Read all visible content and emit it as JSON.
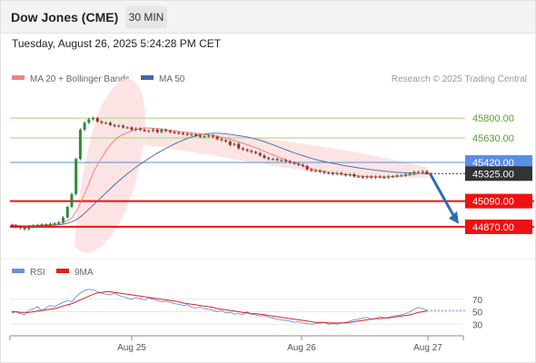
{
  "header": {
    "title": "Dow Jones (CME)",
    "timeframe": "30 MIN"
  },
  "datetime": "Tuesday, August 26, 2025 5:24:28 PM CET",
  "legend": {
    "ma20_label": "MA 20 + Bollinger Bands",
    "ma50_label": "MA 50",
    "source": "Research © 2025 Trading Central",
    "rsi_label": "RSI",
    "ma9_label": "9MA"
  },
  "colors": {
    "ma20": "#f08080",
    "ma50": "#3e6aa8",
    "bollinger_fill": "#fde1e1",
    "resistance": "#a5d66e",
    "support": "#ee1111",
    "pivot": "#5a8de6",
    "current": "#333333",
    "rsi": "#6b8fe0",
    "rsi_ma": "#e02020",
    "arrow": "#2f6cb5"
  },
  "chart_data": [
    {
      "type": "candlestick",
      "x_ticks": [
        "Aug 25",
        "Aug 26",
        "Aug 27"
      ],
      "levels": [
        {
          "value": 45800.0,
          "label": "45800.00",
          "kind": "resistance"
        },
        {
          "value": 45630.0,
          "label": "45630.00",
          "kind": "resistance"
        },
        {
          "value": 45420.0,
          "label": "45420.00",
          "kind": "pivot"
        },
        {
          "value": 45325.0,
          "label": "45325.00",
          "kind": "current"
        },
        {
          "value": 45090.0,
          "label": "45090.00",
          "kind": "support"
        },
        {
          "value": 44870.0,
          "label": "44870.00",
          "kind": "support"
        }
      ],
      "close_series": [
        44880,
        44870,
        44860,
        44850,
        44870,
        44880,
        44885,
        44890,
        44890,
        44895,
        44900,
        44910,
        44950,
        45040,
        45150,
        45450,
        45700,
        45760,
        45790,
        45800,
        45770,
        45760,
        45760,
        45740,
        45730,
        45735,
        45720,
        45720,
        45700,
        45710,
        45700,
        45690,
        45690,
        45700,
        45680,
        45700,
        45690,
        45680,
        45675,
        45670,
        45665,
        45660,
        45660,
        45650,
        45640,
        45645,
        45650,
        45640,
        45620,
        45610,
        45600,
        45570,
        45580,
        45540,
        45530,
        45520,
        45510,
        45500,
        45480,
        45460,
        45450,
        45450,
        45440,
        45440,
        45430,
        45420,
        45410,
        45400,
        45390,
        45360,
        45350,
        45350,
        45340,
        45330,
        45330,
        45320,
        45330,
        45320,
        45310,
        45320,
        45300,
        45300,
        45290,
        45300,
        45290,
        45300,
        45295,
        45290,
        45300,
        45300,
        45310,
        45310,
        45320,
        45325,
        45340,
        45340,
        45345,
        45325
      ],
      "ma20_series": [
        44890,
        44885,
        44880,
        44880,
        44880,
        44882,
        44884,
        44886,
        44888,
        44890,
        44893,
        44897,
        44905,
        44920,
        44945,
        45000,
        45070,
        45150,
        45240,
        45330,
        45400,
        45460,
        45520,
        45570,
        45610,
        45640,
        45660,
        45675,
        45690,
        45700,
        45710,
        45715,
        45715,
        45712,
        45708,
        45705,
        45700,
        45695,
        45690,
        45685,
        45680,
        45676,
        45672,
        45668,
        45664,
        45660,
        45656,
        45650,
        45643,
        45636,
        45628,
        45618,
        45608,
        45596,
        45584,
        45572,
        45560,
        45546,
        45532,
        45516,
        45500,
        45486,
        45472,
        45458,
        45444,
        45430,
        45418,
        45406,
        45394,
        45380,
        45368,
        45358,
        45350,
        45344,
        45338,
        45332,
        45326,
        45320,
        45316,
        45312,
        45308,
        45305,
        45302,
        45300,
        45298,
        45298,
        45297,
        45297,
        45298,
        45300,
        45302,
        45304,
        45308,
        45312,
        45318,
        45324,
        45330,
        45334
      ],
      "ma50_series": [
        44880,
        44880,
        44880,
        44880,
        44880,
        44880,
        44880,
        44880,
        44880,
        44882,
        44884,
        44887,
        44892,
        44900,
        44912,
        44930,
        44955,
        44985,
        45020,
        45055,
        45090,
        45125,
        45160,
        45195,
        45230,
        45262,
        45293,
        45323,
        45352,
        45380,
        45405,
        45430,
        45455,
        45478,
        45500,
        45520,
        45540,
        45560,
        45578,
        45595,
        45610,
        45625,
        45638,
        45648,
        45656,
        45663,
        45668,
        45670,
        45670,
        45668,
        45664,
        45660,
        45655,
        45650,
        45644,
        45638,
        45630,
        45620,
        45610,
        45598,
        45585,
        45572,
        45558,
        45544,
        45530,
        45516,
        45502,
        45490,
        45478,
        45466,
        45455,
        45445,
        45436,
        45428,
        45420,
        45413,
        45406,
        45399,
        45392,
        45386,
        45380,
        45374,
        45369,
        45364,
        45359,
        45354,
        45350,
        45346,
        45342,
        45338,
        45336,
        45334,
        45332,
        45330,
        45328,
        45326,
        45325,
        45325
      ],
      "y_range": [
        44660,
        46010
      ]
    },
    {
      "type": "line",
      "name": "RSI",
      "ticks": [
        70,
        50,
        30
      ],
      "y_range": [
        10,
        90
      ],
      "rsi_series": [
        48,
        50,
        47,
        45,
        52,
        55,
        58,
        52,
        56,
        60,
        58,
        62,
        65,
        68,
        66,
        74,
        80,
        84,
        86,
        85,
        82,
        80,
        78,
        77,
        80,
        76,
        74,
        72,
        70,
        73,
        71,
        69,
        72,
        70,
        68,
        66,
        67,
        65,
        63,
        62,
        60,
        61,
        57,
        56,
        58,
        55,
        54,
        52,
        50,
        52,
        48,
        49,
        46,
        47,
        45,
        50,
        46,
        45,
        43,
        44,
        41,
        40,
        38,
        37,
        36,
        35,
        33,
        34,
        32,
        31,
        30,
        31,
        32,
        33,
        30,
        31,
        30,
        32,
        33,
        35,
        37,
        38,
        40,
        41,
        38,
        39,
        42,
        40,
        41,
        43,
        44,
        45,
        47,
        50,
        54,
        57,
        55,
        52
      ],
      "ma9_series": [
        50,
        50,
        49,
        49,
        49,
        50,
        51,
        52,
        53,
        54,
        55,
        57,
        59,
        61,
        63,
        66,
        69,
        72,
        75,
        78,
        80,
        81,
        82,
        82,
        81,
        80,
        79,
        78,
        77,
        76,
        75,
        74,
        73,
        72,
        71,
        70,
        69,
        68,
        67,
        66,
        64,
        63,
        62,
        61,
        60,
        59,
        58,
        57,
        55,
        54,
        53,
        52,
        51,
        50,
        49,
        48,
        47,
        47,
        46,
        45,
        44,
        43,
        42,
        41,
        40,
        39,
        38,
        37,
        36,
        35,
        34,
        33,
        33,
        33,
        32,
        32,
        32,
        32,
        32,
        33,
        34,
        35,
        36,
        37,
        38,
        39,
        39,
        40,
        40,
        41,
        42,
        43,
        44,
        45,
        47,
        49,
        50,
        51
      ]
    }
  ]
}
